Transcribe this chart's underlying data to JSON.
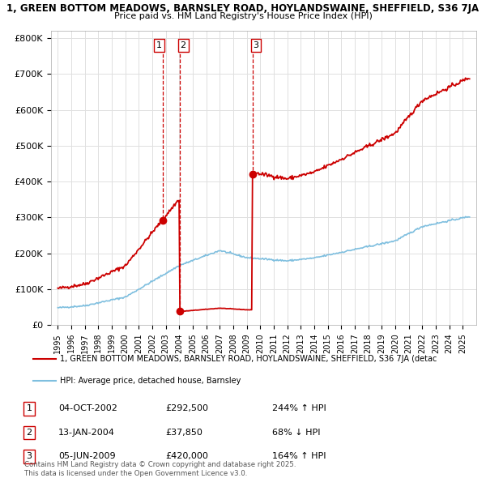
{
  "title_line1": "1, GREEN BOTTOM MEADOWS, BARNSLEY ROAD, HOYLANDSWAINE, SHEFFIELD, S36 7JA",
  "title_line2": "Price paid vs. HM Land Registry's House Price Index (HPI)",
  "hpi_color": "#7fbfdf",
  "price_color": "#cc0000",
  "background_color": "#ffffff",
  "grid_color": "#e0e0e0",
  "transactions": [
    {
      "label": "1",
      "date_x": 2002.75,
      "price": 292500,
      "date_str": "04-OCT-2002",
      "price_str": "£292,500",
      "hpi_str": "244% ↑ HPI"
    },
    {
      "label": "2",
      "date_x": 2004.04,
      "price": 37850,
      "date_str": "13-JAN-2004",
      "price_str": "£37,850",
      "hpi_str": "68% ↓ HPI"
    },
    {
      "label": "3",
      "date_x": 2009.42,
      "price": 420000,
      "date_str": "05-JUN-2009",
      "price_str": "£420,000",
      "hpi_str": "164% ↑ HPI"
    }
  ],
  "ylim": [
    0,
    820000
  ],
  "xlim": [
    1994.5,
    2026.0
  ],
  "yticks": [
    0,
    100000,
    200000,
    300000,
    400000,
    500000,
    600000,
    700000,
    800000
  ],
  "ytick_labels": [
    "£0",
    "£100K",
    "£200K",
    "£300K",
    "£400K",
    "£500K",
    "£600K",
    "£700K",
    "£800K"
  ],
  "xticks": [
    1995,
    1996,
    1997,
    1998,
    1999,
    2000,
    2001,
    2002,
    2003,
    2004,
    2005,
    2006,
    2007,
    2008,
    2009,
    2010,
    2011,
    2012,
    2013,
    2014,
    2015,
    2016,
    2017,
    2018,
    2019,
    2020,
    2021,
    2022,
    2023,
    2024,
    2025
  ],
  "legend_label_price": "1, GREEN BOTTOM MEADOWS, BARNSLEY ROAD, HOYLANDSWAINE, SHEFFIELD, S36 7JA (detac",
  "legend_label_hpi": "HPI: Average price, detached house, Barnsley",
  "footnote": "Contains HM Land Registry data © Crown copyright and database right 2025.\nThis data is licensed under the Open Government Licence v3.0."
}
